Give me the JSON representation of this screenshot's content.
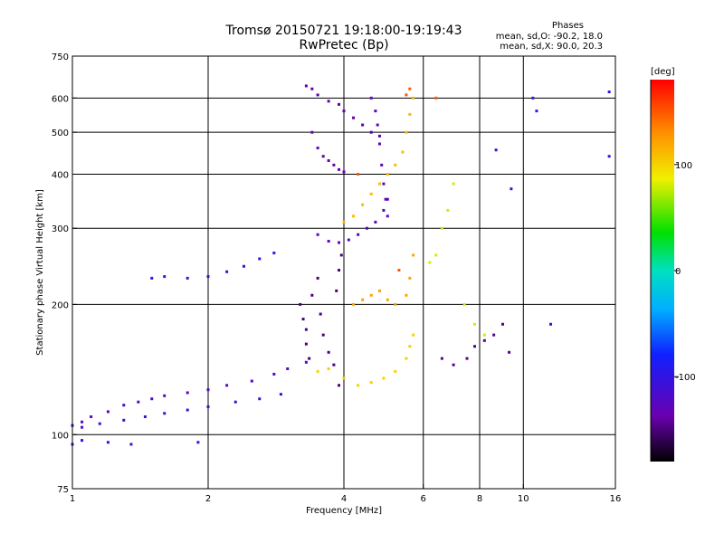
{
  "title": {
    "line1": "Tromsø 20150721 19:18:00-19:19:43",
    "line2": "RwPretec (Bp)"
  },
  "phases": {
    "heading": "Phases",
    "o_stats": "mean, sd,O: -90.2, 18.0",
    "x_stats": "mean, sd,X:  90.0, 20.3"
  },
  "chart_data": {
    "type": "scatter",
    "x_scale": "log",
    "y_scale": "log",
    "xlabel": "Frequency [MHz]",
    "ylabel": "Stationary phase Virtual Height [km]",
    "xlim": [
      1,
      16
    ],
    "ylim": [
      75,
      750
    ],
    "x_ticks": [
      1,
      2,
      4,
      6,
      8,
      10,
      16
    ],
    "y_ticks": [
      75,
      100,
      200,
      300,
      400,
      500,
      600,
      750
    ],
    "x_grid": [
      2,
      4,
      6,
      8,
      10
    ],
    "y_grid": [
      100,
      200,
      300,
      400,
      500,
      600
    ],
    "colorbar": {
      "label": "[deg]",
      "range": [
        -180,
        180
      ],
      "ticks": [
        100,
        0,
        -100
      ]
    },
    "series": [
      {
        "phase_deg": -120,
        "points": [
          [
            1.0,
            105
          ],
          [
            1.05,
            107
          ],
          [
            1.1,
            110
          ],
          [
            1.2,
            113
          ],
          [
            1.3,
            117
          ],
          [
            1.4,
            119
          ],
          [
            1.5,
            121
          ],
          [
            1.6,
            123
          ],
          [
            1.8,
            125
          ],
          [
            2.0,
            127
          ],
          [
            2.2,
            130
          ],
          [
            2.5,
            133
          ],
          [
            2.8,
            138
          ],
          [
            3.0,
            142
          ],
          [
            3.3,
            147
          ]
        ]
      },
      {
        "phase_deg": -110,
        "points": [
          [
            1.05,
            104
          ],
          [
            1.15,
            106
          ],
          [
            1.3,
            108
          ],
          [
            1.45,
            110
          ],
          [
            1.6,
            112
          ],
          [
            1.8,
            114
          ],
          [
            2.0,
            116
          ],
          [
            2.3,
            119
          ],
          [
            2.6,
            121
          ],
          [
            2.9,
            124
          ]
        ]
      },
      {
        "phase_deg": -100,
        "points": [
          [
            1.5,
            230
          ],
          [
            1.6,
            232
          ],
          [
            1.8,
            230
          ],
          [
            2.0,
            232
          ],
          [
            2.2,
            238
          ],
          [
            2.4,
            245
          ],
          [
            2.6,
            255
          ],
          [
            2.8,
            263
          ]
        ]
      },
      {
        "phase_deg": -95,
        "points": [
          [
            1.0,
            95
          ],
          [
            1.05,
            97
          ],
          [
            1.2,
            96
          ],
          [
            1.35,
            95
          ],
          [
            1.9,
            96
          ]
        ]
      },
      {
        "phase_deg": -150,
        "points": [
          [
            3.2,
            200
          ],
          [
            3.25,
            185
          ],
          [
            3.3,
            175
          ],
          [
            3.3,
            162
          ],
          [
            3.35,
            150
          ],
          [
            3.4,
            210
          ],
          [
            3.5,
            230
          ],
          [
            3.55,
            190
          ],
          [
            3.6,
            170
          ],
          [
            3.7,
            155
          ],
          [
            3.8,
            145
          ],
          [
            3.9,
            130
          ],
          [
            3.85,
            215
          ],
          [
            3.9,
            240
          ],
          [
            3.95,
            260
          ]
        ]
      },
      {
        "phase_deg": -140,
        "points": [
          [
            3.3,
            640
          ],
          [
            3.4,
            630
          ],
          [
            3.5,
            610
          ],
          [
            3.7,
            590
          ],
          [
            3.9,
            580
          ],
          [
            4.0,
            560
          ],
          [
            4.2,
            540
          ],
          [
            4.4,
            520
          ],
          [
            4.6,
            500
          ],
          [
            4.8,
            490
          ]
        ]
      },
      {
        "phase_deg": -135,
        "points": [
          [
            3.4,
            500
          ],
          [
            3.5,
            460
          ],
          [
            3.6,
            440
          ],
          [
            3.7,
            430
          ],
          [
            3.8,
            420
          ],
          [
            3.9,
            410
          ],
          [
            4.0,
            405
          ]
        ]
      },
      {
        "phase_deg": -130,
        "points": [
          [
            3.5,
            290
          ],
          [
            3.7,
            280
          ],
          [
            3.9,
            278
          ],
          [
            4.1,
            282
          ],
          [
            4.3,
            290
          ],
          [
            4.5,
            300
          ],
          [
            4.7,
            310
          ],
          [
            4.9,
            330
          ],
          [
            5.0,
            350
          ]
        ]
      },
      {
        "phase_deg": -125,
        "points": [
          [
            4.6,
            600
          ],
          [
            4.7,
            560
          ],
          [
            4.75,
            520
          ],
          [
            4.8,
            470
          ],
          [
            4.85,
            420
          ],
          [
            4.9,
            380
          ],
          [
            4.95,
            350
          ],
          [
            5.0,
            320
          ]
        ]
      },
      {
        "phase_deg": 110,
        "points": [
          [
            4.0,
            310
          ],
          [
            4.2,
            320
          ],
          [
            4.4,
            340
          ],
          [
            4.6,
            360
          ],
          [
            4.8,
            380
          ],
          [
            5.0,
            400
          ],
          [
            5.2,
            420
          ],
          [
            5.4,
            450
          ],
          [
            5.5,
            500
          ],
          [
            5.6,
            550
          ],
          [
            5.7,
            600
          ]
        ]
      },
      {
        "phase_deg": 120,
        "points": [
          [
            4.2,
            200
          ],
          [
            4.4,
            205
          ],
          [
            4.6,
            210
          ],
          [
            4.8,
            215
          ],
          [
            5.0,
            205
          ],
          [
            5.2,
            200
          ],
          [
            5.5,
            210
          ],
          [
            5.6,
            230
          ],
          [
            5.7,
            260
          ]
        ]
      },
      {
        "phase_deg": 100,
        "points": [
          [
            3.5,
            140
          ],
          [
            3.7,
            142
          ],
          [
            4.0,
            135
          ],
          [
            4.3,
            130
          ],
          [
            4.6,
            132
          ],
          [
            4.9,
            135
          ],
          [
            5.2,
            140
          ],
          [
            5.5,
            150
          ],
          [
            5.6,
            160
          ],
          [
            5.7,
            170
          ]
        ]
      },
      {
        "phase_deg": 80,
        "points": [
          [
            6.2,
            250
          ],
          [
            6.4,
            260
          ],
          [
            6.6,
            300
          ],
          [
            6.8,
            330
          ],
          [
            7.0,
            380
          ],
          [
            7.4,
            200
          ],
          [
            7.8,
            180
          ],
          [
            8.2,
            170
          ]
        ]
      },
      {
        "phase_deg": -145,
        "points": [
          [
            6.6,
            150
          ],
          [
            7.0,
            145
          ],
          [
            7.5,
            150
          ],
          [
            7.8,
            160
          ],
          [
            8.2,
            165
          ],
          [
            8.6,
            170
          ],
          [
            9.0,
            180
          ],
          [
            9.3,
            155
          ]
        ]
      },
      {
        "phase_deg": 150,
        "points": [
          [
            5.6,
            630
          ],
          [
            5.5,
            610
          ],
          [
            6.4,
            600
          ],
          [
            5.3,
            240
          ],
          [
            4.3,
            400
          ]
        ]
      },
      {
        "phase_deg": -105,
        "points": [
          [
            10.5,
            600
          ],
          [
            10.7,
            560
          ],
          [
            15.5,
            620
          ],
          [
            15.5,
            440
          ],
          [
            8.7,
            455
          ],
          [
            11.5,
            180
          ],
          [
            9.4,
            370
          ]
        ]
      }
    ]
  }
}
